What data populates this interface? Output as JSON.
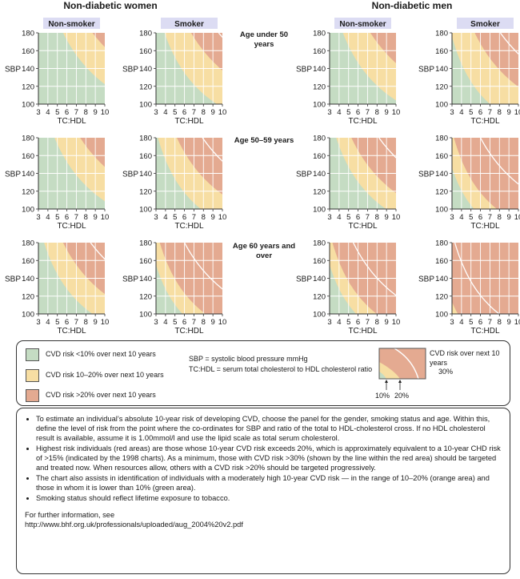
{
  "chart_data": {
    "type": "heatmap",
    "x_axis": {
      "label": "TC:HDL",
      "range": [
        3,
        10
      ],
      "ticks": [
        "3",
        "4",
        "5",
        "6",
        "7",
        "8",
        "9",
        "10"
      ]
    },
    "y_axis": {
      "label": "SBP",
      "range": [
        100,
        180
      ],
      "ticks": [
        "100",
        "120",
        "140",
        "160",
        "180"
      ]
    },
    "groups": [
      {
        "title": "Non-diabetic women",
        "columns": [
          "Non-smoker",
          "Smoker"
        ]
      },
      {
        "title": "Non-diabetic men",
        "columns": [
          "Non-smoker",
          "Smoker"
        ]
      }
    ],
    "age_bands": [
      "Age under 50 years",
      "Age 50–59 years",
      "Age 60 years and over"
    ],
    "risk_categories": [
      {
        "label": "CVD risk <10% over next 10 years",
        "color": "#c5dcc3"
      },
      {
        "label": "CVD risk 10–20% over next 10 years",
        "color": "#f7dea3"
      },
      {
        "label": "CVD risk >20% over next 10 years",
        "color": "#e4aa91"
      }
    ],
    "panels": [
      {
        "sex": "women",
        "smoker": false,
        "age": "<50",
        "t10": 5.6,
        "t20": 8.7,
        "t30": null
      },
      {
        "sex": "women",
        "smoker": true,
        "age": "<50",
        "t10": 3.9,
        "t20": 6.7,
        "t30": 9.6
      },
      {
        "sex": "women",
        "smoker": false,
        "age": "50-59",
        "t10": 4.7,
        "t20": 7.4,
        "t30": null
      },
      {
        "sex": "women",
        "smoker": true,
        "age": "50-59",
        "t10": 3.2,
        "t20": 5.2,
        "t30": 7.9
      },
      {
        "sex": "women",
        "smoker": false,
        "age": "60+",
        "t10": 3.6,
        "t20": 5.6,
        "t30": 8.5
      },
      {
        "sex": "women",
        "smoker": true,
        "age": "60+",
        "t10": 2.4,
        "t20": 3.4,
        "t30": 6.0
      },
      {
        "sex": "men",
        "smoker": false,
        "age": "<50",
        "t10": 4.4,
        "t20": 7.3,
        "t30": null
      },
      {
        "sex": "men",
        "smoker": true,
        "age": "<50",
        "t10": 2.9,
        "t20": 5.4,
        "t30": 8.1
      },
      {
        "sex": "men",
        "smoker": false,
        "age": "50-59",
        "t10": 3.7,
        "t20": 5.3,
        "t30": 8.2
      },
      {
        "sex": "men",
        "smoker": true,
        "age": "50-59",
        "t10": 2.2,
        "t20": 3.2,
        "t30": 6.0
      },
      {
        "sex": "men",
        "smoker": false,
        "age": "60+",
        "t10": 2.4,
        "t20": 3.3,
        "t30": 5.5
      },
      {
        "sex": "men",
        "smoker": true,
        "age": "60+",
        "t10": 1.0,
        "t20": 1.5,
        "t30": 3.3
      }
    ]
  },
  "legend": {
    "items": [
      "CVD risk <10% over next 10 years",
      "CVD risk 10–20% over next 10 years",
      "CVD risk >20% over next 10 years"
    ],
    "abbrev1": "SBP = systolic blood pressure mmHg",
    "abbrev2": "TC:HDL = serum total cholesterol to HDL  cholesterol ratio",
    "inset_title": "CVD risk over next 10 years",
    "inset_30": "30%",
    "inset_10": "10%",
    "inset_20": "20%"
  },
  "notes": {
    "bullets": [
      "To estimate an individual’s absolute 10-year risk of developing CVD, choose the panel for the gender, smoking status and age. Within this, define the level of risk from the point where the co-ordinates for SBP and ratio of the total to HDL-cholesterol cross. If no HDL cholesterol result is available, assume it is 1.00mmol/l and use the lipid scale as total serum cholesterol.",
      "Highest risk individuals (red areas) are those whose 10-year CVD risk exceeds 20%, which is approximately equivalent to a 10-year CHD risk of >15% (indicated by the 1998 charts). As a minimum, those with CVD risk >30% (shown by the line within the red area) should be targeted and treated now. When resources allow, others with a CVD risk >20% should be targeted progressively.",
      "The chart also assists in identification of individuals with a moderately high 10-year CVD risk — in the range of 10–20% (orange area) and those in whom it is lower than 10% (green area).",
      "Smoking status should reflect lifetime exposure to tobacco."
    ],
    "further_info": "For further information, see",
    "url": "http://www.bhf.org.uk/professionals/uploaded/aug_2004%20v2.pdf"
  }
}
